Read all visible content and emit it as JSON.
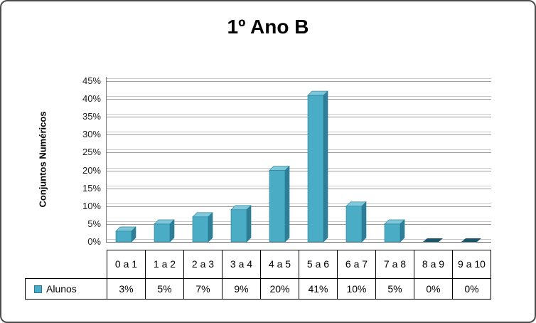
{
  "chart_data": {
    "type": "bar",
    "title": "1º Ano B",
    "ylabel": "Conjuntos Numéricos",
    "categories": [
      "0 a 1",
      "1 a 2",
      "2 a 3",
      "3 a 4",
      "4 a 5",
      "5 a 6",
      "6 a 7",
      "7 a 8",
      "8 a 9",
      "9 a 10"
    ],
    "series": [
      {
        "name": "Alunos",
        "values": [
          3,
          5,
          7,
          9,
          20,
          41,
          10,
          5,
          0,
          0
        ]
      }
    ],
    "value_labels": [
      "3%",
      "5%",
      "7%",
      "9%",
      "20%",
      "41%",
      "10%",
      "5%",
      "0%",
      "0%"
    ],
    "ylim": [
      0,
      45
    ],
    "ytick_step": 5,
    "ytick_labels": [
      "0%",
      "5%",
      "10%",
      "15%",
      "20%",
      "25%",
      "30%",
      "35%",
      "40%",
      "45%"
    ],
    "grid": true,
    "legend_position": "data-table",
    "style": "3d-column"
  },
  "colors": {
    "bar_front": "#4BACC6",
    "bar_top": "#7FC7DB",
    "bar_side": "#2E7E97",
    "bar_outline": "#277A93",
    "bar_zero": "#17566B",
    "grid": "#9c9c9c",
    "axis": "#7a7a7a",
    "frame_border": "#4b4b4b",
    "table_border": "#000000"
  }
}
